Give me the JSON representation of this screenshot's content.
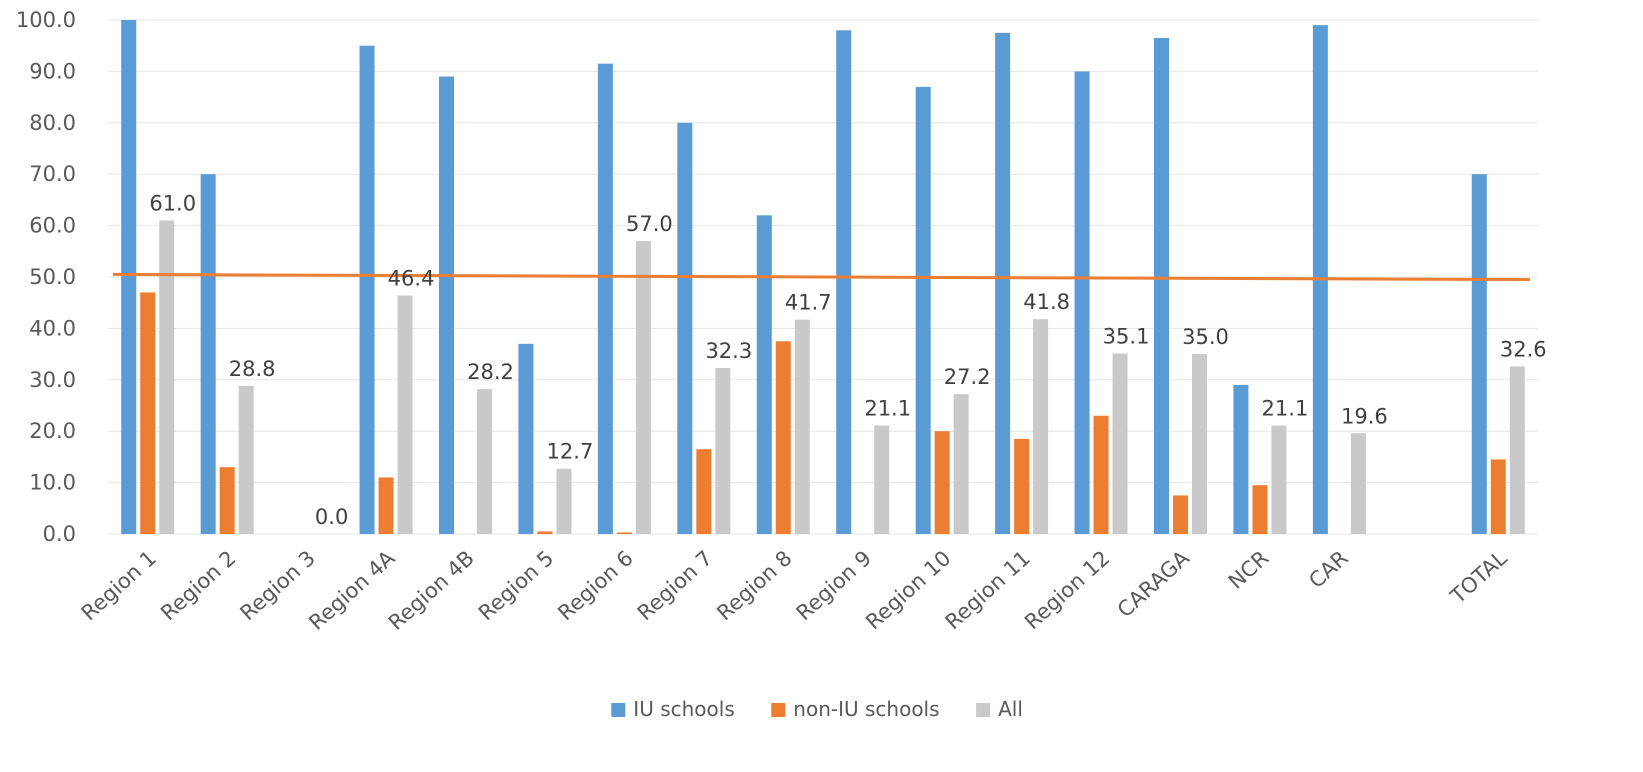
{
  "chart_data": {
    "type": "bar",
    "categories": [
      "Region 1",
      "Region 2",
      "Region 3",
      "Region 4A",
      "Region 4B",
      "Region 5",
      "Region 6",
      "Region 7",
      "Region 8",
      "Region 9",
      "Region 10",
      "Region 11",
      "Region 12",
      "CARAGA",
      "NCR",
      "CAR",
      "TOTAL"
    ],
    "series": [
      {
        "name": "IU schools",
        "color": "#5B9BD5",
        "values": [
          100.0,
          70.0,
          null,
          95.0,
          89.0,
          37.0,
          91.5,
          80.0,
          62.0,
          98.0,
          87.0,
          97.5,
          90.0,
          96.5,
          29.0,
          99.0,
          70.0
        ]
      },
      {
        "name": "non-IU schools",
        "color": "#ED7D31",
        "values": [
          47.0,
          13.0,
          null,
          11.0,
          null,
          0.5,
          0.3,
          16.5,
          37.5,
          null,
          20.0,
          18.5,
          23.0,
          7.5,
          9.5,
          null,
          14.5
        ]
      },
      {
        "name": "All",
        "color": "#C9C9C9",
        "values": [
          61.0,
          28.8,
          0.0,
          46.4,
          28.2,
          12.7,
          57.0,
          32.3,
          41.7,
          21.1,
          27.2,
          41.8,
          35.1,
          35.0,
          21.1,
          19.6,
          32.6
        ]
      }
    ],
    "data_labels": [
      "61.0",
      "28.8",
      "0.0",
      "46.4",
      "28.2",
      "12.7",
      "57.0",
      "32.3",
      "41.7",
      "21.1",
      "27.2",
      "41.8",
      "35.1",
      "35.0",
      "21.1",
      "19.6",
      "32.6"
    ],
    "reference_line": {
      "color": "#ED7D31",
      "start_value": 50.5,
      "end_value": 49.5
    },
    "ylim": [
      0,
      100
    ],
    "yticks": [
      "0.0",
      "10.0",
      "20.0",
      "30.0",
      "40.0",
      "50.0",
      "60.0",
      "70.0",
      "80.0",
      "90.0",
      "100.0"
    ],
    "title": "",
    "xlabel": "",
    "ylabel": "",
    "grid": true,
    "legend_position": "bottom"
  }
}
